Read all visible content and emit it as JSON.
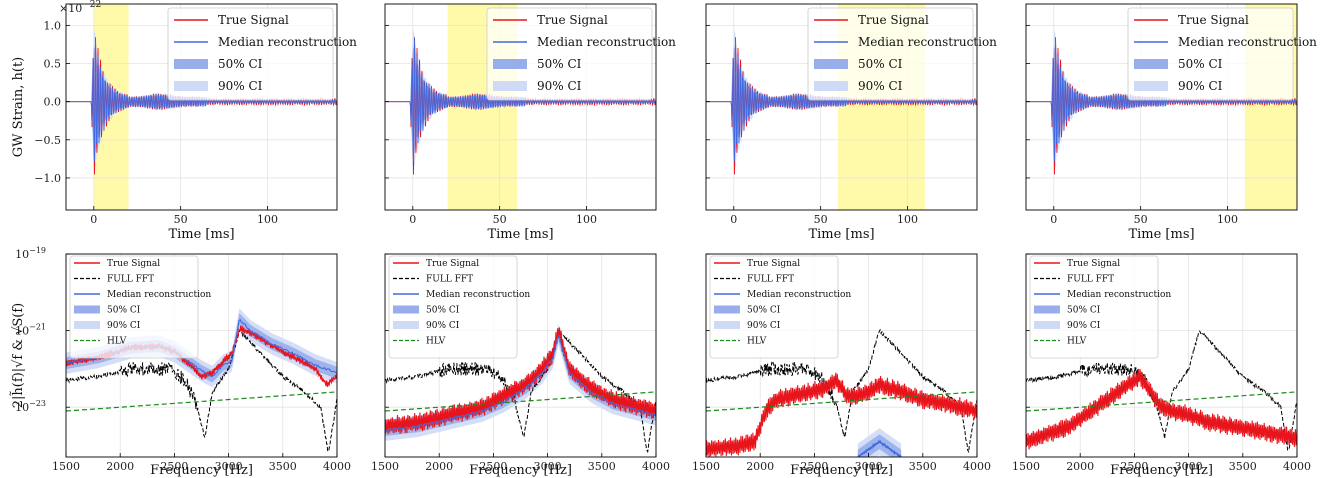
{
  "figure": {
    "colors": {
      "true_signal": "#e8141c",
      "median": "#4169e1",
      "ci50": "#98aeea",
      "ci90": "#cfdaf6",
      "window": "#fffaa0",
      "hlv": "#1a8a1a",
      "fft": "#000000"
    }
  },
  "chart_data": [
    {
      "type": "line",
      "row": "time",
      "panel": 1,
      "xlabel": "Time [ms]",
      "ylabel": "GW Strain, h(t)",
      "yexponent": "×10",
      "yexponent_power": "−22",
      "xlim": [
        -16,
        140
      ],
      "ylim": [
        -1.42,
        1.28
      ],
      "xticks": [
        "0",
        "50",
        "100"
      ],
      "yticks": [
        "−1.0",
        "−0.5",
        "0.0",
        "0.5",
        "1.0"
      ],
      "highlight_window_ms": [
        0,
        20
      ],
      "legend": [
        "True Signal",
        "Median reconstruction",
        "50% CI",
        "90% CI"
      ]
    },
    {
      "type": "line",
      "row": "time",
      "panel": 2,
      "xlabel": "Time [ms]",
      "xlim": [
        -16,
        140
      ],
      "ylim": [
        -1.42,
        1.28
      ],
      "xticks": [
        "0",
        "50",
        "100"
      ],
      "highlight_window_ms": [
        20,
        60
      ],
      "legend": [
        "True Signal",
        "Median reconstruction",
        "50% CI",
        "90% CI"
      ]
    },
    {
      "type": "line",
      "row": "time",
      "panel": 3,
      "xlabel": "Time [ms]",
      "xlim": [
        -16,
        140
      ],
      "ylim": [
        -1.42,
        1.28
      ],
      "xticks": [
        "0",
        "50",
        "100"
      ],
      "highlight_window_ms": [
        60,
        110
      ],
      "legend": [
        "True Signal",
        "Median reconstruction",
        "50% CI",
        "90% CI"
      ]
    },
    {
      "type": "line",
      "row": "time",
      "panel": 4,
      "xlabel": "Time [ms]",
      "xlim": [
        -16,
        140
      ],
      "ylim": [
        -1.42,
        1.28
      ],
      "xticks": [
        "0",
        "50",
        "100"
      ],
      "highlight_window_ms": [
        110,
        140
      ],
      "legend": [
        "True Signal",
        "Median reconstruction",
        "50% CI",
        "90% CI"
      ]
    },
    {
      "type": "line",
      "row": "freq",
      "panel": 1,
      "scale_y": "log",
      "xlabel": "Frequency [Hz]",
      "ylabel": "2|h̃(f)|√f & √S(f)",
      "xlim": [
        1500,
        4000
      ],
      "ylim_log10": [
        -24.3,
        -19
      ],
      "xticks": [
        "1500",
        "2000",
        "2500",
        "3000",
        "3500",
        "4000"
      ],
      "yticks": [
        "10",
        "10",
        "10"
      ],
      "ytick_powers": [
        "−19",
        "−21",
        "−23"
      ],
      "legend": [
        "True Signal",
        "FULL FFT",
        "Median reconstruction",
        "50% CI",
        "90% CI",
        "HLV"
      ],
      "hlv_log10": [
        -23.1,
        -22.6
      ],
      "fft_log10": [
        [
          1500,
          -22.3
        ],
        [
          1800,
          -22.2
        ],
        [
          2100,
          -22.0
        ],
        [
          2450,
          -22.0
        ],
        [
          2600,
          -22.3
        ],
        [
          2700,
          -22.9
        ],
        [
          2780,
          -23.8
        ],
        [
          2850,
          -22.6
        ],
        [
          3000,
          -22.0
        ],
        [
          3100,
          -21.0
        ],
        [
          3300,
          -21.6
        ],
        [
          3500,
          -22.2
        ],
        [
          3700,
          -22.6
        ],
        [
          3850,
          -23.0
        ],
        [
          3920,
          -24.2
        ],
        [
          4000,
          -22.8
        ]
      ],
      "signal_log10": [
        [
          1500,
          -21.85
        ],
        [
          1800,
          -21.7
        ],
        [
          2100,
          -21.45
        ],
        [
          2350,
          -21.4
        ],
        [
          2500,
          -21.55
        ],
        [
          2650,
          -21.9
        ],
        [
          2750,
          -22.2
        ],
        [
          2850,
          -22.1
        ],
        [
          2950,
          -21.8
        ],
        [
          3030,
          -21.6
        ],
        [
          3100,
          -20.95
        ],
        [
          3200,
          -21.05
        ],
        [
          3400,
          -21.4
        ],
        [
          3600,
          -21.7
        ],
        [
          3800,
          -22.0
        ],
        [
          3900,
          -22.4
        ],
        [
          4000,
          -22.2
        ]
      ],
      "median_log10": [
        [
          1500,
          -21.85
        ],
        [
          1800,
          -21.7
        ],
        [
          2100,
          -21.45
        ],
        [
          2350,
          -21.4
        ],
        [
          2500,
          -21.55
        ],
        [
          2650,
          -21.85
        ],
        [
          2750,
          -22.05
        ],
        [
          2850,
          -22.2
        ],
        [
          2950,
          -21.9
        ],
        [
          3030,
          -21.8
        ],
        [
          3100,
          -20.7
        ],
        [
          3200,
          -21.0
        ],
        [
          3400,
          -21.35
        ],
        [
          3600,
          -21.6
        ],
        [
          3800,
          -21.9
        ],
        [
          4000,
          -22.1
        ]
      ]
    },
    {
      "type": "line",
      "row": "freq",
      "panel": 2,
      "scale_y": "log",
      "xlabel": "Frequency [Hz]",
      "xlim": [
        1500,
        4000
      ],
      "ylim_log10": [
        -24.3,
        -19
      ],
      "xticks": [
        "1500",
        "2000",
        "2500",
        "3000",
        "3500",
        "4000"
      ],
      "legend": [
        "True Signal",
        "FULL FFT",
        "Median reconstruction",
        "50% CI",
        "90% CI",
        "HLV"
      ],
      "hlv_log10": [
        -23.1,
        -22.6
      ],
      "fft_log10": [
        [
          1500,
          -22.3
        ],
        [
          1800,
          -22.2
        ],
        [
          2100,
          -22.0
        ],
        [
          2450,
          -22.0
        ],
        [
          2600,
          -22.3
        ],
        [
          2700,
          -22.9
        ],
        [
          2780,
          -23.8
        ],
        [
          2850,
          -22.6
        ],
        [
          3000,
          -22.0
        ],
        [
          3100,
          -21.0
        ],
        [
          3300,
          -21.6
        ],
        [
          3500,
          -22.2
        ],
        [
          3700,
          -22.6
        ],
        [
          3850,
          -23.0
        ],
        [
          3920,
          -24.2
        ],
        [
          4000,
          -22.8
        ]
      ],
      "signal_log10": [
        [
          1500,
          -23.5
        ],
        [
          1800,
          -23.4
        ],
        [
          2100,
          -23.2
        ],
        [
          2400,
          -23.0
        ],
        [
          2600,
          -22.7
        ],
        [
          2800,
          -22.4
        ],
        [
          2950,
          -22.0
        ],
        [
          3050,
          -21.6
        ],
        [
          3100,
          -21.0
        ],
        [
          3200,
          -22.0
        ],
        [
          3400,
          -22.5
        ],
        [
          3600,
          -22.8
        ],
        [
          3800,
          -22.95
        ],
        [
          4000,
          -23.1
        ]
      ],
      "median_log10": [
        [
          1500,
          -23.6
        ],
        [
          1800,
          -23.5
        ],
        [
          2100,
          -23.3
        ],
        [
          2400,
          -23.1
        ],
        [
          2600,
          -22.85
        ],
        [
          2800,
          -22.5
        ],
        [
          2950,
          -22.1
        ],
        [
          3050,
          -21.7
        ],
        [
          3100,
          -21.1
        ],
        [
          3200,
          -22.1
        ],
        [
          3400,
          -22.6
        ],
        [
          3600,
          -22.9
        ],
        [
          3800,
          -23.05
        ],
        [
          4000,
          -23.2
        ]
      ]
    },
    {
      "type": "line",
      "row": "freq",
      "panel": 3,
      "scale_y": "log",
      "xlabel": "Frequency [Hz]",
      "xlim": [
        1500,
        4000
      ],
      "ylim_log10": [
        -24.3,
        -19
      ],
      "xticks": [
        "1500",
        "2000",
        "2500",
        "3000",
        "3500",
        "4000"
      ],
      "legend": [
        "True Signal",
        "FULL FFT",
        "Median reconstruction",
        "50% CI",
        "90% CI",
        "HLV"
      ],
      "hlv_log10": [
        -23.1,
        -22.6
      ],
      "fft_log10": [
        [
          1500,
          -22.3
        ],
        [
          1800,
          -22.2
        ],
        [
          2100,
          -22.0
        ],
        [
          2450,
          -22.0
        ],
        [
          2600,
          -22.3
        ],
        [
          2700,
          -22.9
        ],
        [
          2780,
          -23.8
        ],
        [
          2850,
          -22.6
        ],
        [
          3000,
          -22.0
        ],
        [
          3100,
          -21.0
        ],
        [
          3300,
          -21.6
        ],
        [
          3500,
          -22.2
        ],
        [
          3700,
          -22.6
        ],
        [
          3850,
          -23.0
        ],
        [
          3920,
          -24.2
        ],
        [
          4000,
          -22.8
        ]
      ],
      "signal_log10": [
        [
          1500,
          -24.1
        ],
        [
          1800,
          -24.0
        ],
        [
          1950,
          -23.9
        ],
        [
          2050,
          -23.1
        ],
        [
          2150,
          -22.8
        ],
        [
          2300,
          -22.7
        ],
        [
          2450,
          -22.6
        ],
        [
          2600,
          -22.5
        ],
        [
          2700,
          -22.3
        ],
        [
          2800,
          -22.7
        ],
        [
          2900,
          -22.7
        ],
        [
          3000,
          -22.6
        ],
        [
          3100,
          -22.4
        ],
        [
          3300,
          -22.6
        ],
        [
          3500,
          -22.8
        ],
        [
          3700,
          -22.9
        ],
        [
          3850,
          -23.0
        ],
        [
          4000,
          -23.1
        ]
      ],
      "median_log10": [
        [
          2900,
          -24.3
        ],
        [
          3000,
          -24.1
        ],
        [
          3100,
          -23.9
        ],
        [
          3200,
          -24.1
        ],
        [
          3300,
          -24.3
        ]
      ]
    },
    {
      "type": "line",
      "row": "freq",
      "panel": 4,
      "scale_y": "log",
      "xlabel": "Frequency [Hz]",
      "xlim": [
        1500,
        4000
      ],
      "ylim_log10": [
        -24.3,
        -19
      ],
      "xticks": [
        "1500",
        "2000",
        "2500",
        "3000",
        "3500",
        "4000"
      ],
      "legend": [
        "True Signal",
        "FULL FFT",
        "Median reconstruction",
        "50% CI",
        "90% CI",
        "HLV"
      ],
      "hlv_log10": [
        -23.1,
        -22.6
      ],
      "fft_log10": [
        [
          1500,
          -22.3
        ],
        [
          1800,
          -22.2
        ],
        [
          2100,
          -22.0
        ],
        [
          2450,
          -22.0
        ],
        [
          2600,
          -22.3
        ],
        [
          2700,
          -22.9
        ],
        [
          2780,
          -23.8
        ],
        [
          2850,
          -22.6
        ],
        [
          3000,
          -22.0
        ],
        [
          3100,
          -21.0
        ],
        [
          3300,
          -21.6
        ],
        [
          3500,
          -22.2
        ],
        [
          3700,
          -22.6
        ],
        [
          3850,
          -23.0
        ],
        [
          3920,
          -24.2
        ],
        [
          4000,
          -22.8
        ]
      ],
      "signal_log10": [
        [
          1500,
          -23.9
        ],
        [
          1700,
          -23.7
        ],
        [
          1900,
          -23.5
        ],
        [
          2050,
          -23.2
        ],
        [
          2200,
          -22.9
        ],
        [
          2350,
          -22.6
        ],
        [
          2450,
          -22.4
        ],
        [
          2550,
          -22.2
        ],
        [
          2650,
          -22.6
        ],
        [
          2750,
          -23.0
        ],
        [
          2850,
          -23.1
        ],
        [
          3000,
          -23.2
        ],
        [
          3200,
          -23.4
        ],
        [
          3400,
          -23.5
        ],
        [
          3600,
          -23.6
        ],
        [
          3800,
          -23.7
        ],
        [
          4000,
          -23.8
        ]
      ],
      "median_log10": []
    }
  ]
}
